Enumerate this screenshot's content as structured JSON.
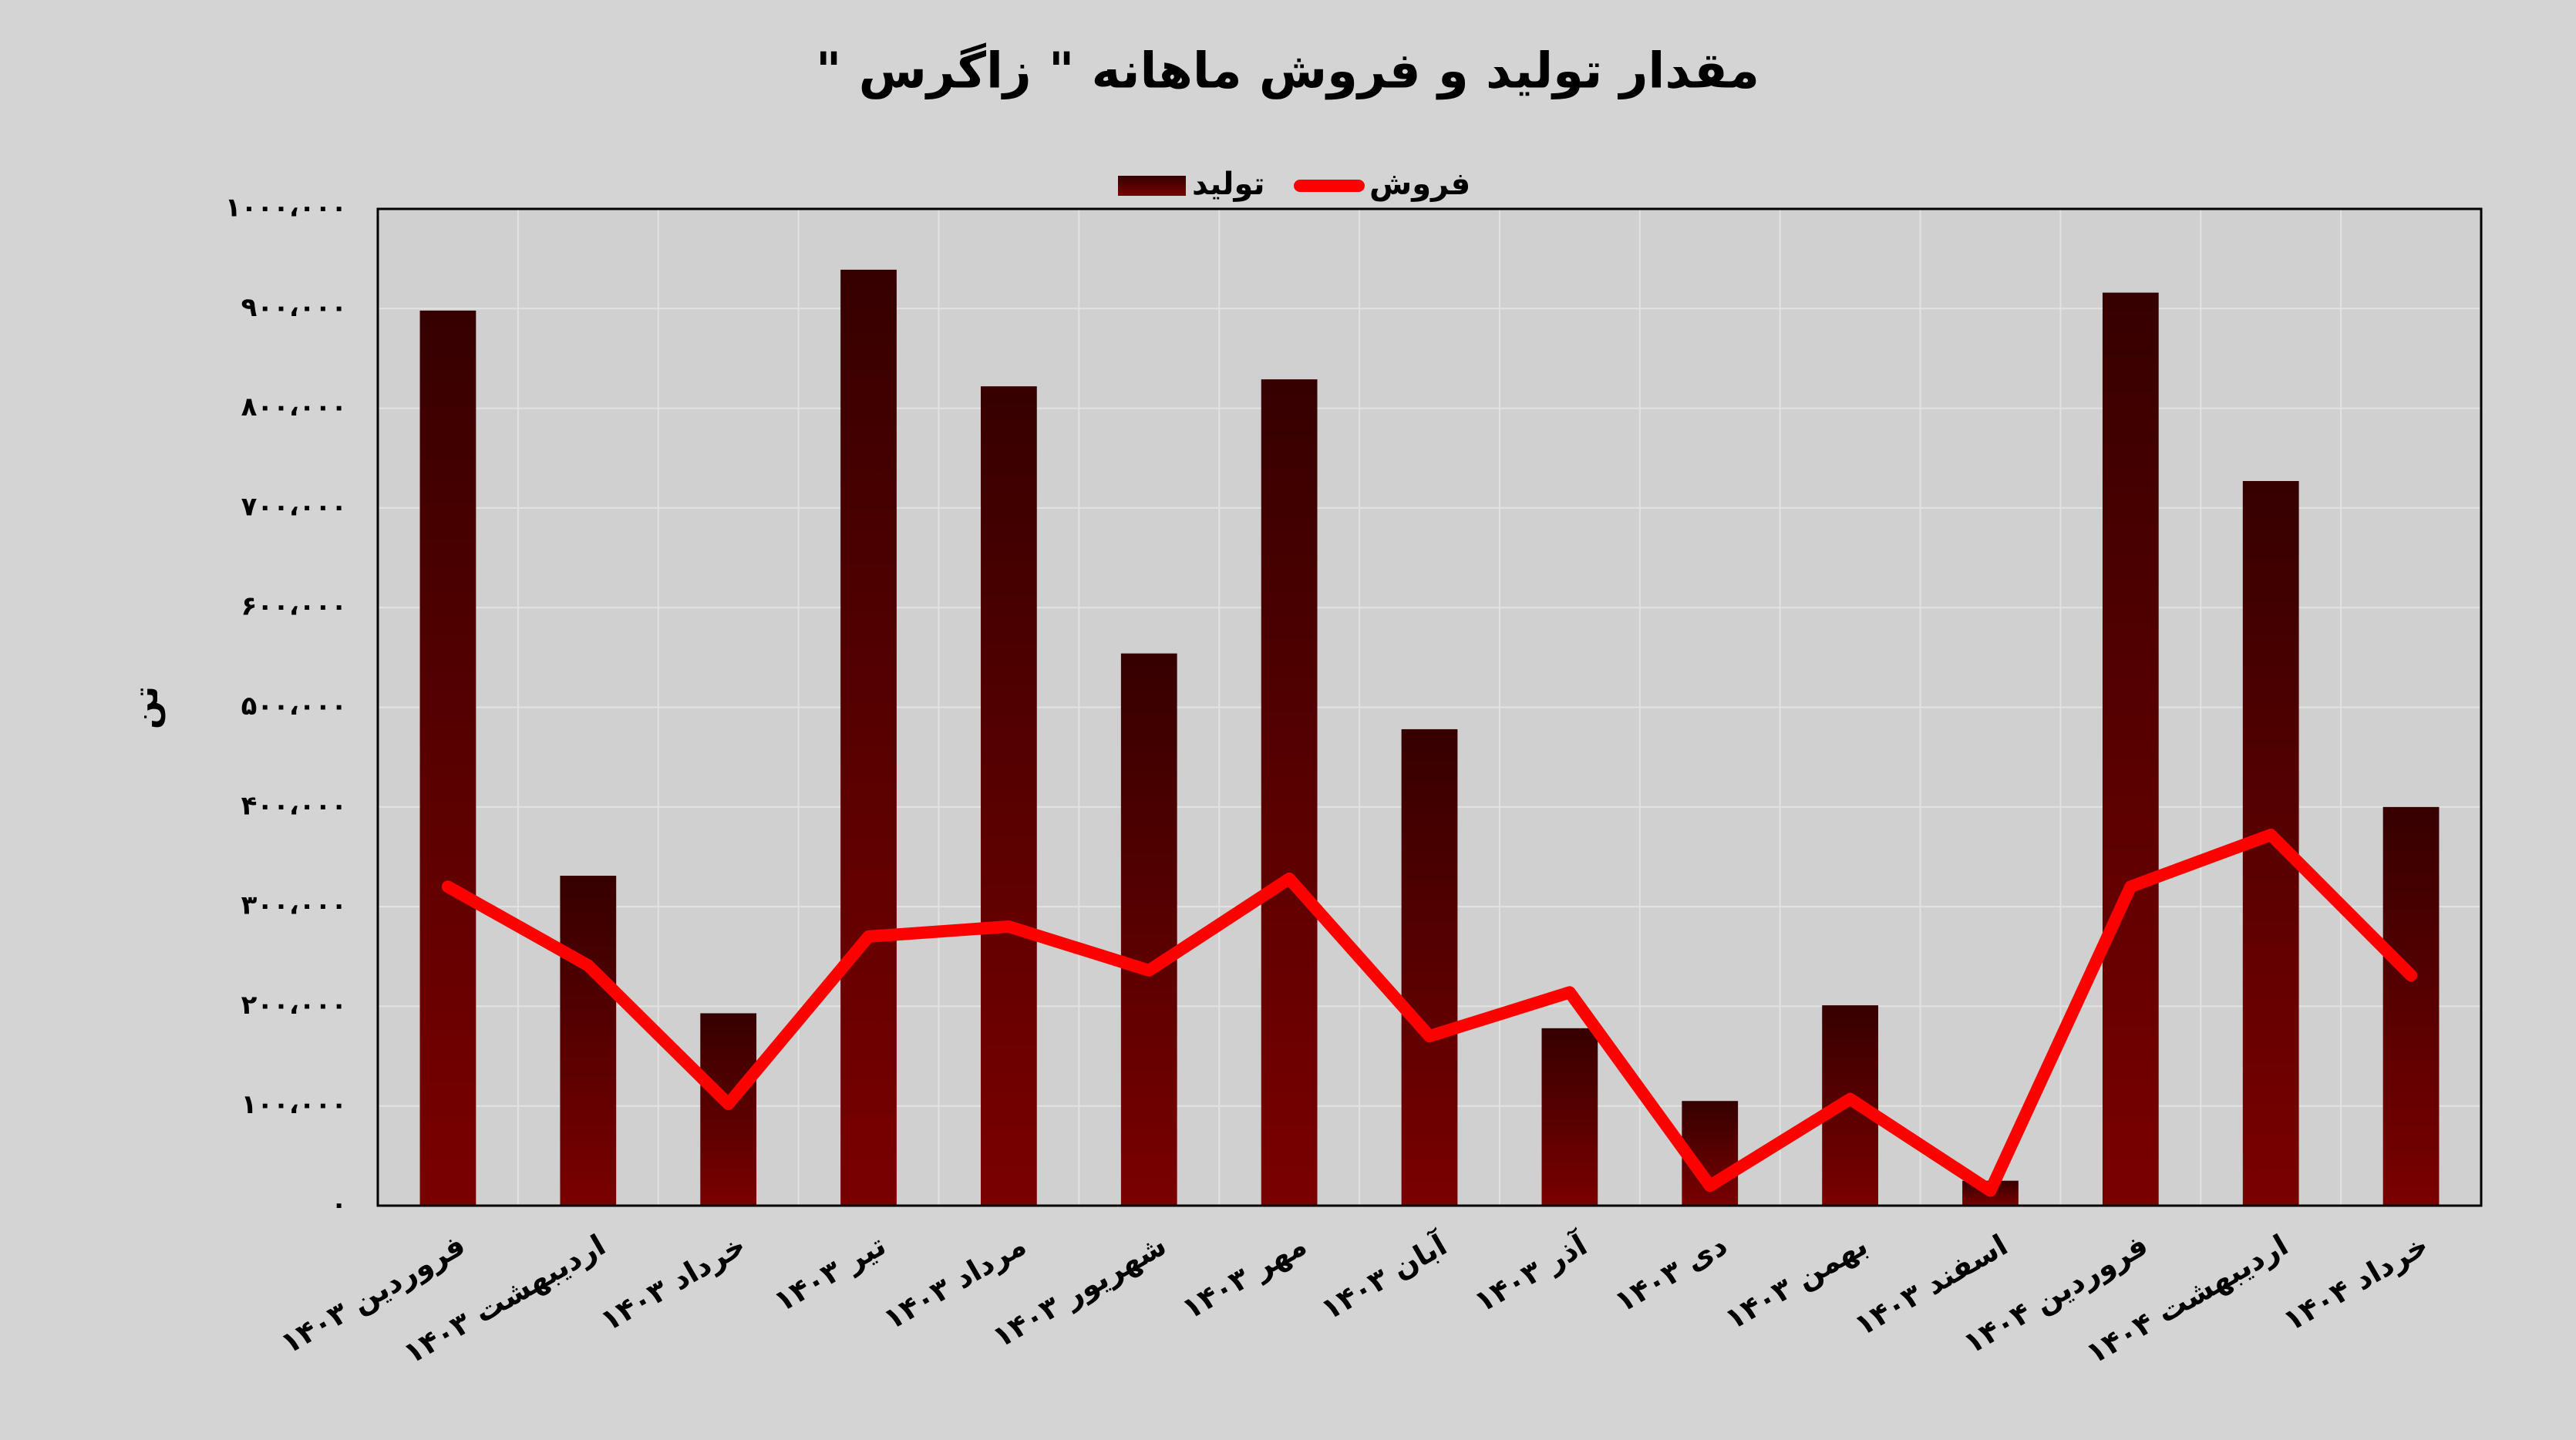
{
  "chart_data": {
    "type": "bar",
    "title": "مقدار تولید و فروش ماهانه \" زاگرس \"",
    "y_label": "تن",
    "categories": [
      "فروردین ۱۴۰۳",
      "اردیبهشت ۱۴۰۳",
      "خرداد ۱۴۰۳",
      "تیر ۱۴۰۳",
      "مرداد ۱۴۰۳",
      "شهریور ۱۴۰۳",
      "مهر ۱۴۰۳",
      "آبان ۱۴۰۳",
      "آذر ۱۴۰۳",
      "دی ۱۴۰۳",
      "بهمن ۱۴۰۳",
      "اسفند ۱۴۰۳",
      "فروردین ۱۴۰۴",
      "اردیبهشت ۱۴۰۴",
      "خرداد ۱۴۰۴"
    ],
    "series": [
      {
        "name": "تولید",
        "type": "bar",
        "color": "#6e0000",
        "values": [
          898000,
          331000,
          193000,
          939000,
          822000,
          554000,
          829000,
          478000,
          178000,
          105000,
          201000,
          25000,
          916000,
          727000,
          400000
        ]
      },
      {
        "name": "فروش",
        "type": "line",
        "color": "#ff0000",
        "values": [
          320000,
          241000,
          102000,
          270000,
          280000,
          236000,
          328000,
          170000,
          214000,
          20000,
          107000,
          15000,
          320000,
          372000,
          231000
        ]
      }
    ],
    "ylim": [
      0,
      1000000
    ],
    "yticks": [
      {
        "value": 0,
        "label": "۰"
      },
      {
        "value": 100000,
        "label": "۱۰۰،۰۰۰"
      },
      {
        "value": 200000,
        "label": "۲۰۰،۰۰۰"
      },
      {
        "value": 300000,
        "label": "۳۰۰،۰۰۰"
      },
      {
        "value": 400000,
        "label": "۴۰۰،۰۰۰"
      },
      {
        "value": 500000,
        "label": "۵۰۰،۰۰۰"
      },
      {
        "value": 600000,
        "label": "۶۰۰،۰۰۰"
      },
      {
        "value": 700000,
        "label": "۷۰۰،۰۰۰"
      },
      {
        "value": 800000,
        "label": "۸۰۰،۰۰۰"
      },
      {
        "value": 900000,
        "label": "۹۰۰،۰۰۰"
      },
      {
        "value": 1000000,
        "label": "۱۰۰۰،۰۰۰"
      }
    ],
    "grid": true,
    "legend": "top"
  }
}
